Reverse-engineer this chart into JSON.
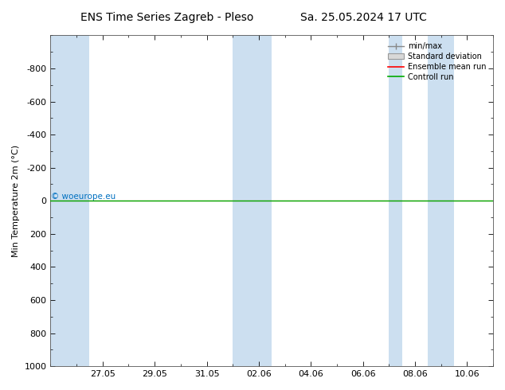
{
  "title_left": "ENS Time Series Zagreb - Pleso",
  "title_right": "Sa. 25.05.2024 17 UTC",
  "ylabel": "Min Temperature 2m (°C)",
  "ylim_top": -1000,
  "ylim_bottom": 1000,
  "yticks": [
    -800,
    -600,
    -400,
    -200,
    0,
    200,
    400,
    600,
    800,
    1000
  ],
  "xtick_labels": [
    "27.05",
    "29.05",
    "31.05",
    "02.06",
    "04.06",
    "06.06",
    "08.06",
    "10.06"
  ],
  "xtick_days": [
    2,
    4,
    6,
    8,
    10,
    12,
    14,
    16
  ],
  "xlim": [
    0,
    17
  ],
  "green_line_y": 0,
  "blue_band_color": "#ccdff0",
  "background_color": "#ffffff",
  "title_fontsize": 10,
  "axis_fontsize": 8,
  "watermark": "© woeurope.eu",
  "watermark_color": "#0070c0",
  "legend_entries": [
    "min/max",
    "Standard deviation",
    "Ensemble mean run",
    "Controll run"
  ],
  "legend_line_colors": [
    "#888888",
    "#bbbbbb",
    "#ff0000",
    "#00aa00"
  ],
  "green_line_color": "#00aa00",
  "red_line_color": "#ff0000",
  "blue_bands": [
    [
      0.0,
      0.5
    ],
    [
      0.5,
      1.5
    ],
    [
      7.0,
      7.5
    ],
    [
      7.5,
      8.5
    ],
    [
      13.0,
      13.5
    ],
    [
      14.5,
      15.5
    ]
  ]
}
